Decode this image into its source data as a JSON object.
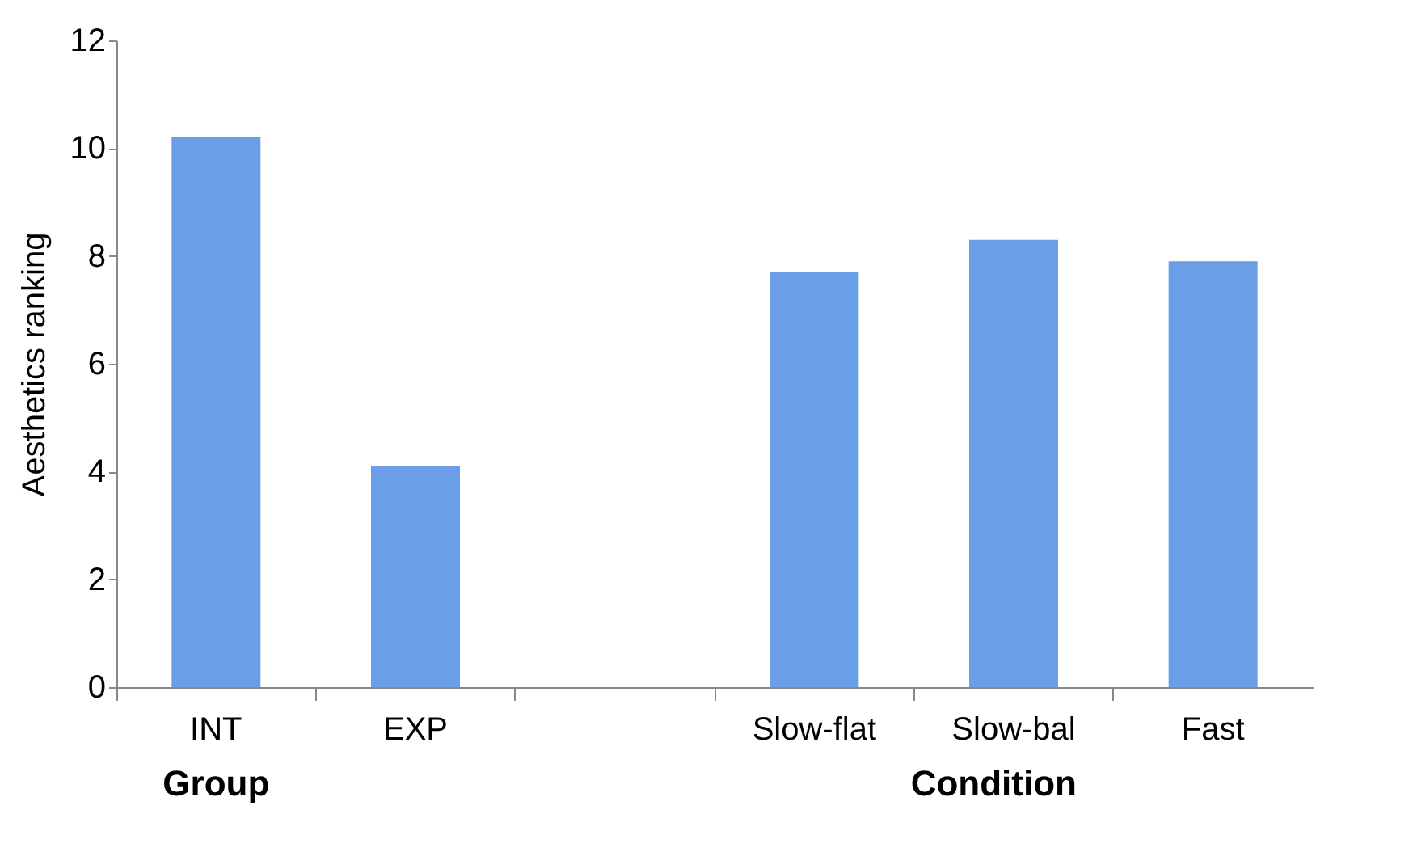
{
  "chart_data": {
    "type": "bar",
    "ylabel": "Aesthetics ranking",
    "categories": [
      "INT",
      "EXP",
      null,
      "Slow-flat",
      "Slow-bal",
      "Fast"
    ],
    "values": [
      10.2,
      4.1,
      null,
      7.7,
      8.3,
      7.9
    ],
    "color": "#6a9ee6",
    "ylim": [
      0,
      12
    ],
    "yticks": [
      0,
      2,
      4,
      6,
      8,
      10,
      12
    ],
    "grid": false,
    "annotations": [
      "Group",
      "Condition"
    ]
  }
}
